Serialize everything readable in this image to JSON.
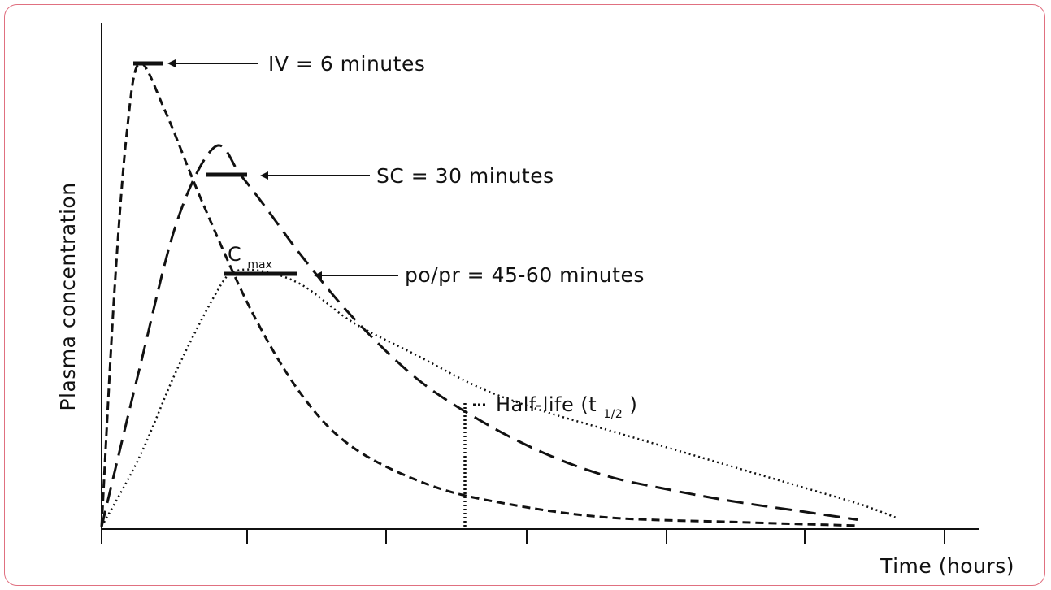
{
  "colors": {
    "frame_border": "#e07080",
    "ink": "#111111"
  },
  "chart_data": {
    "type": "line",
    "xlabel": "Time (hours)",
    "ylabel": "Plasma concentration",
    "grid": false,
    "legend": "none",
    "x_ticks": 7,
    "annotations": {
      "iv": "IV = 6 minutes",
      "sc": "SC = 30 minutes",
      "po": "po/pr = 45-60 minutes",
      "cmax_main": "C",
      "cmax_sub": "max",
      "half_life_main": "Half-life (t",
      "half_life_sub": "1/2",
      "half_life_close": ")"
    },
    "series": [
      {
        "dash": "short-dashed",
        "x": [
          0,
          0.1,
          0.2,
          0.3,
          0.5,
          0.8,
          1.2,
          1.6,
          2.0,
          2.6,
          3.2,
          4.0,
          5.0,
          6.0
        ],
        "y": [
          0,
          50,
          85,
          100,
          90,
          70,
          46,
          28,
          17,
          9,
          5,
          2,
          1,
          0.2
        ]
      },
      {
        "dash": "long-dashed",
        "x": [
          0,
          0.3,
          0.6,
          0.9,
          1.1,
          1.3,
          1.6,
          2.0,
          2.5,
          3.0,
          3.5,
          4.0,
          4.5,
          5.0,
          5.5,
          6.0
        ],
        "y": [
          0,
          34,
          66,
          82,
          76,
          69,
          58,
          45,
          32,
          23,
          16,
          11,
          8,
          5.5,
          3.5,
          1.5
        ]
      },
      {
        "dash": "dotted",
        "x": [
          0,
          0.3,
          0.6,
          0.9,
          1.05,
          1.3,
          1.6,
          2.0,
          2.5,
          3.0,
          3.5,
          4.0,
          4.5,
          5.0,
          5.5,
          6.0,
          6.3
        ],
        "y": [
          0,
          15,
          34,
          50,
          55,
          55,
          52,
          44,
          37,
          30,
          25,
          21,
          17,
          13,
          9,
          5,
          2
        ]
      }
    ]
  }
}
